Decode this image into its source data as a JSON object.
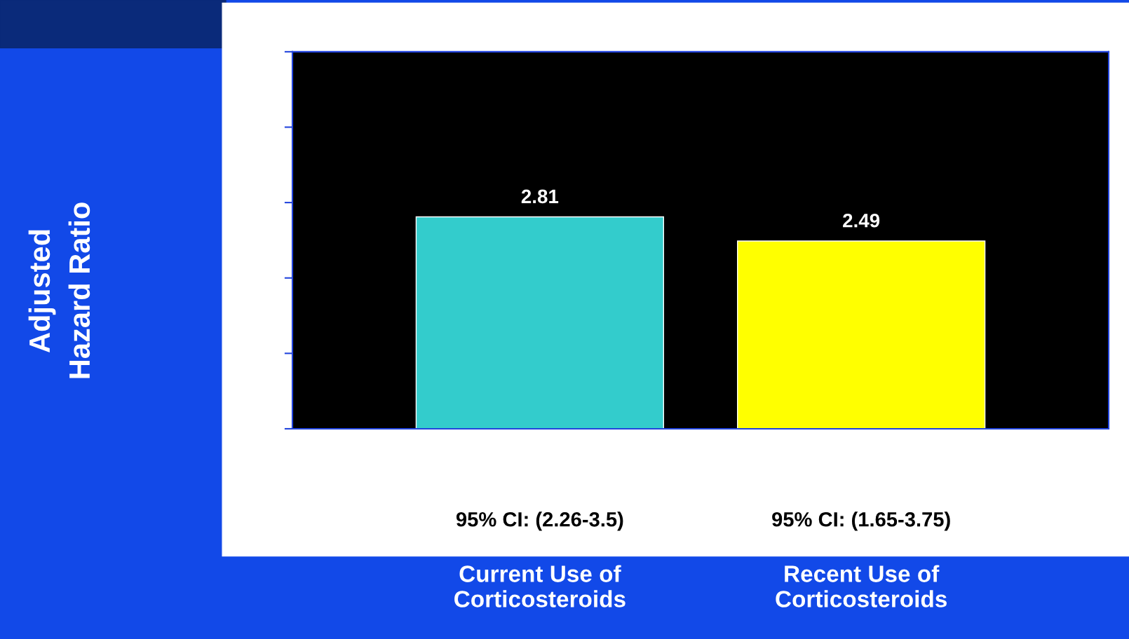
{
  "chart_data": {
    "type": "bar",
    "categories": [
      "Current Use of\nCorticosteroids",
      "Recent Use of\nCorticosteroids"
    ],
    "values": [
      2.81,
      2.49
    ],
    "colors": [
      "#33cccc",
      "#ffff00"
    ],
    "ylim": [
      0,
      5
    ],
    "data_labels": true,
    "grid": false,
    "legend": false,
    "annotations": [
      "Adjusted\nHazard Ratio",
      "95% CI: (2.26-3.5)",
      "95% CI: (1.65-3.75)"
    ]
  }
}
